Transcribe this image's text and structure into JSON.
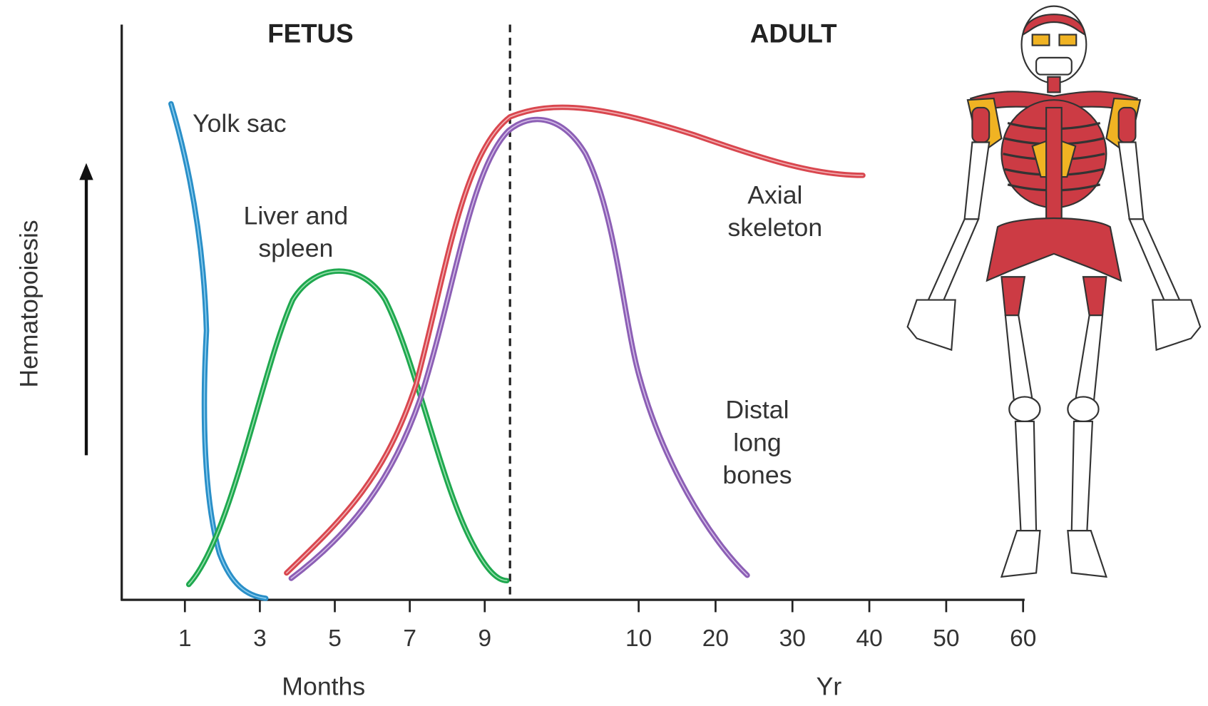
{
  "header": {
    "left": "FETUS",
    "right": "ADULT"
  },
  "y_axis": {
    "label": "Hematopoiesis"
  },
  "x_axis": {
    "months": {
      "ticks": [
        "1",
        "3",
        "5",
        "7",
        "9"
      ],
      "label": "Months"
    },
    "years": {
      "ticks": [
        "10",
        "20",
        "30",
        "40",
        "50",
        "60"
      ],
      "label": "Yr"
    }
  },
  "curves": [
    {
      "label": [
        "Yolk sac"
      ]
    },
    {
      "label": [
        "Liver and",
        "spleen"
      ]
    },
    {
      "label": [
        "Axial",
        "skeleton"
      ]
    },
    {
      "label": [
        "Distal",
        "long",
        "bones"
      ]
    }
  ]
}
